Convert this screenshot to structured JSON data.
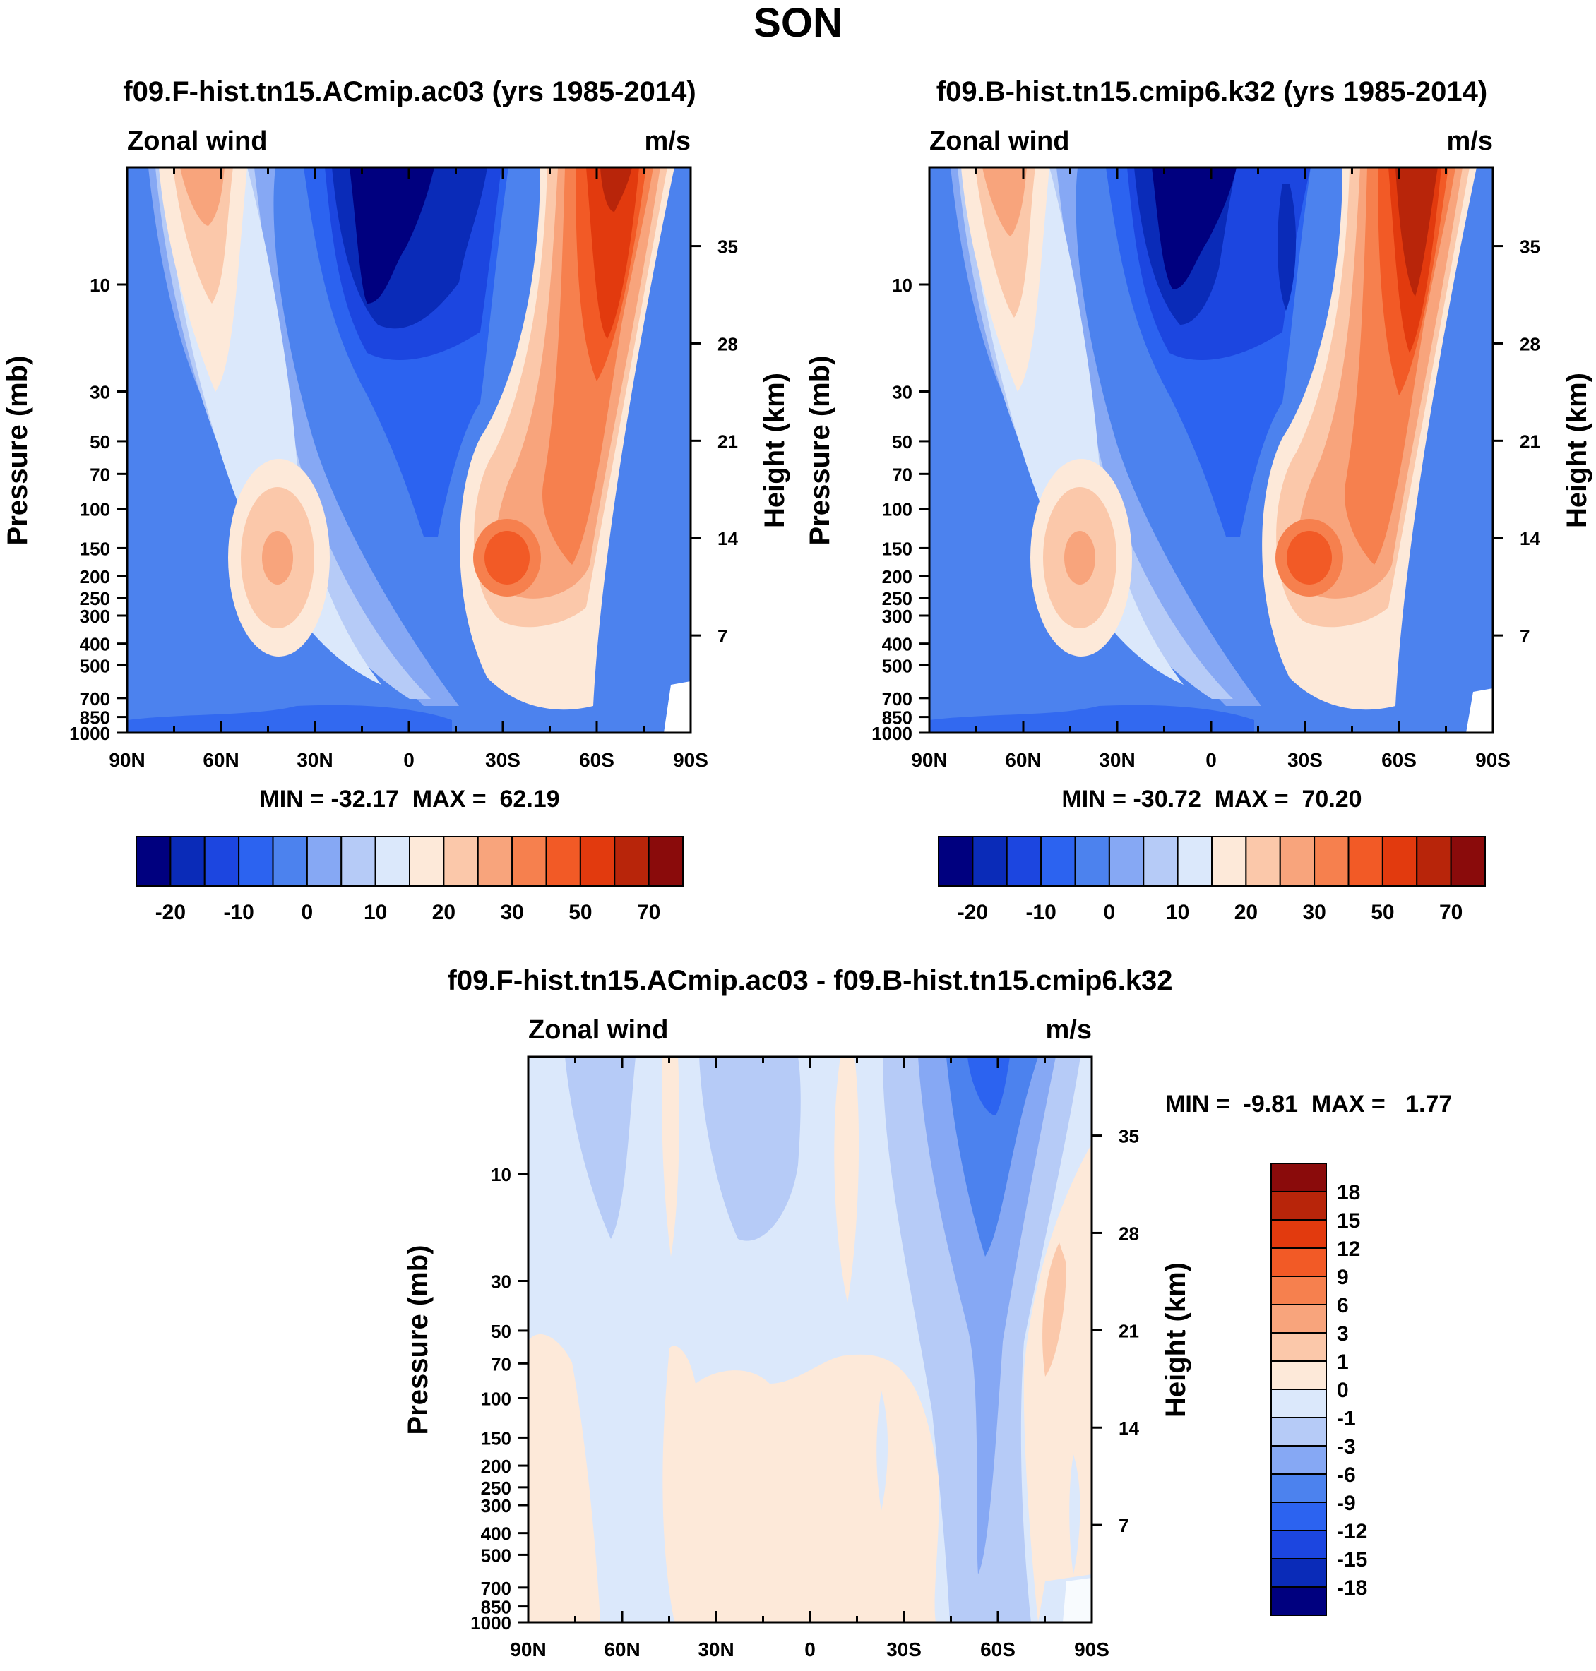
{
  "figure_title": "SON",
  "colors": {
    "main_scale": [
      "#00007f",
      "#0a2bb8",
      "#1c46e0",
      "#2c63f0",
      "#4c82ee",
      "#86a8f4",
      "#b6cbf7",
      "#dbe8fb",
      "#fde9d9",
      "#fbc8aa",
      "#f8a47c",
      "#f6804e",
      "#f25a26",
      "#e23a0e",
      "#b8250a",
      "#8a0b0b"
    ],
    "diff_scale": [
      "#00007f",
      "#0a2bb8",
      "#1c46e0",
      "#2c63f0",
      "#4c82ee",
      "#86a8f4",
      "#b6cbf7",
      "#dbe8fb",
      "#fde9d9",
      "#fbc8aa",
      "#f8a47c",
      "#f6804e",
      "#f25a26",
      "#e23a0e",
      "#b8250a",
      "#8a0b0b"
    ]
  },
  "chart_data": [
    {
      "type": "heatmap",
      "panel": "left",
      "title": "f09.F-hist.tn15.ACmip.ac03 (yrs 1985-2014)",
      "variable_label": "Zonal wind",
      "units_label": "m/s",
      "ylabel": "Pressure (mb)",
      "ylabel_right": "Height (km)",
      "x_ticks": [
        "90N",
        "60N",
        "30N",
        "0",
        "30S",
        "60S",
        "90S"
      ],
      "x_range": [
        90,
        -90
      ],
      "y_ticks": [
        "10",
        "30",
        "50",
        "70",
        "100",
        "150",
        "200",
        "250",
        "300",
        "400",
        "500",
        "700",
        "850",
        "1000"
      ],
      "y_ticks_right": [
        "35",
        "28",
        "21",
        "14",
        "7"
      ],
      "y_range_mb": [
        1000,
        3
      ],
      "stats": "MIN = -32.17  MAX =  62.19",
      "min": -32.17,
      "max": 62.19,
      "colorbar_labels": [
        "-20",
        "-10",
        "0",
        "10",
        "20",
        "30",
        "50",
        "70"
      ]
    },
    {
      "type": "heatmap",
      "panel": "right",
      "title": "f09.B-hist.tn15.cmip6.k32 (yrs 1985-2014)",
      "variable_label": "Zonal wind",
      "units_label": "m/s",
      "ylabel": "Pressure (mb)",
      "ylabel_right": "Height (km)",
      "x_ticks": [
        "90N",
        "60N",
        "30N",
        "0",
        "30S",
        "60S",
        "90S"
      ],
      "x_range": [
        90,
        -90
      ],
      "y_ticks": [
        "10",
        "30",
        "50",
        "70",
        "100",
        "150",
        "200",
        "250",
        "300",
        "400",
        "500",
        "700",
        "850",
        "1000"
      ],
      "y_ticks_right": [
        "35",
        "28",
        "21",
        "14",
        "7"
      ],
      "y_range_mb": [
        1000,
        3
      ],
      "stats": "MIN = -30.72  MAX =  70.20",
      "min": -30.72,
      "max": 70.2,
      "colorbar_labels": [
        "-20",
        "-10",
        "0",
        "10",
        "20",
        "30",
        "50",
        "70"
      ]
    },
    {
      "type": "heatmap",
      "panel": "difference",
      "title": "f09.F-hist.tn15.ACmip.ac03 - f09.B-hist.tn15.cmip6.k32",
      "variable_label": "Zonal wind",
      "units_label": "m/s",
      "ylabel": "Pressure (mb)",
      "ylabel_right": "Height (km)",
      "x_ticks": [
        "90N",
        "60N",
        "30N",
        "0",
        "30S",
        "60S",
        "90S"
      ],
      "x_range": [
        90,
        -90
      ],
      "y_ticks": [
        "10",
        "30",
        "50",
        "70",
        "100",
        "150",
        "200",
        "250",
        "300",
        "400",
        "500",
        "700",
        "850",
        "1000"
      ],
      "y_ticks_right": [
        "35",
        "28",
        "21",
        "14",
        "7"
      ],
      "y_range_mb": [
        1000,
        3
      ],
      "stats": "MIN =  -9.81  MAX =   1.77",
      "min": -9.81,
      "max": 1.77,
      "colorbar_labels": [
        "18",
        "15",
        "12",
        "9",
        "6",
        "3",
        "1",
        "0",
        "-1",
        "-3",
        "-6",
        "-9",
        "-12",
        "-15",
        "-18"
      ]
    }
  ]
}
